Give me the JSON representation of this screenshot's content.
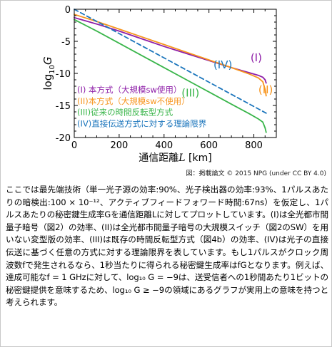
{
  "chart_data": {
    "type": "line",
    "xlabel_prefix": "通信距離",
    "xlabel_var": "L",
    "xlabel_unit": " [km]",
    "ylabel": "log10G",
    "xlim": [
      0,
      900
    ],
    "ylim": [
      -20,
      0
    ],
    "xticks": [
      0,
      200,
      400,
      600,
      800
    ],
    "yticks": [
      0,
      -5,
      -10,
      -15,
      -20
    ],
    "series": [
      {
        "name": "(I)",
        "color": "#8e1ea8",
        "style": "solid",
        "x": [
          0,
          100,
          200,
          300,
          400,
          500,
          600,
          700,
          780,
          820,
          840,
          850,
          855
        ],
        "y": [
          -1.3,
          -2.3,
          -3.4,
          -4.6,
          -5.8,
          -6.9,
          -8.0,
          -9.1,
          -9.9,
          -10.3,
          -10.6,
          -11.0,
          -11.5
        ]
      },
      {
        "name": "(II)",
        "color": "#f7941d",
        "style": "solid",
        "x": [
          0,
          100,
          200,
          300,
          400,
          500,
          600,
          700,
          780,
          820,
          840,
          850,
          855
        ],
        "y": [
          -0.8,
          -1.9,
          -3.1,
          -4.3,
          -5.5,
          -6.7,
          -7.9,
          -9.1,
          -10.1,
          -10.7,
          -11.3,
          -12.5,
          -13.5
        ]
      },
      {
        "name": "(III)",
        "color": "#39b54a",
        "style": "solid",
        "x": [
          0,
          100,
          200,
          300,
          400,
          500,
          600,
          700,
          780,
          820,
          840,
          850,
          855
        ],
        "y": [
          -1.6,
          -3.4,
          -5.3,
          -7.2,
          -9.1,
          -11.0,
          -12.9,
          -14.8,
          -16.3,
          -17.1,
          -17.6,
          -18.5,
          -19.2
        ]
      },
      {
        "name": "(IV)",
        "color": "#1b75bc",
        "style": "dashed",
        "x": [
          0,
          855
        ],
        "y": [
          0.0,
          -16.2
        ]
      }
    ],
    "series_labels": [
      {
        "text": "(I)",
        "color": "#8e1ea8",
        "x": 785,
        "y": -8.1
      },
      {
        "text": "(II)",
        "color": "#f7941d",
        "x": 820,
        "y": -13.1
      },
      {
        "text": "(III)",
        "color": "#39b54a",
        "x": 478,
        "y": -13.6
      },
      {
        "text": "(IV)",
        "color": "#1b75bc",
        "x": 620,
        "y": -9.2
      }
    ],
    "legend": [
      {
        "text": "(I) 本方式（大規模sw使用）",
        "color": "#8e1ea8"
      },
      {
        "text": "(II)本方式（大規模sw不使用）",
        "color": "#f7941d"
      },
      {
        "text": "(III)従来の時間反転型方式",
        "color": "#39b54a"
      },
      {
        "text": "(IV)直接伝送方式に対する理論限界",
        "color": "#1b75bc"
      }
    ],
    "legend_position": "bottom-left",
    "grid": false
  },
  "caption": "図：掲載論文 © 2015 NPG (under CC BY 4.0)",
  "body_text": "ここでは最先端技術（単一光子源の効率:90%、光子検出器の効率:93%、1パルスあたりの暗検出:100 × 10⁻¹²、アクティブフィードフォワード時間:67ns）を仮定し、1パルスあたりの秘密鍵生成率Gを通信距離Lに対してプロットしています。(I)は全光都市間量子暗号（図2）の効率、(II)は全光都市間量子暗号の大規模スイッチ（図2のSW）を用いない変型版の効率、(III)は既存の時間反転型方式（図4b）の効率、(IV)は光子の直接伝送に基づく任意の方式に対する理論限界を表しています。もし1パルスがクロック周波数fで発生されるなら、1秒当たりに得られる秘密鍵生成率はfGとなります。例えば、達成可能なf = 1 GHzに対して、log₁₀ G = −9は、送受信者への1秒間あたり1ビットの秘密鍵提供を意味するため、log₁₀ G ≥ −9の領域にあるグラフが実用上の意味を持つと考えられます。"
}
